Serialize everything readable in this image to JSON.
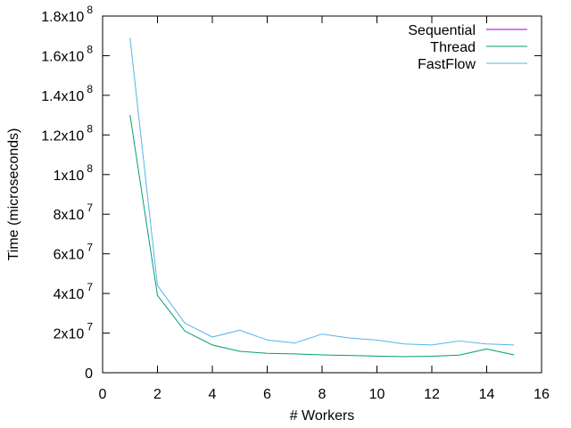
{
  "chart_data": {
    "type": "line",
    "title": "",
    "xlabel": "# Workers",
    "ylabel": "Time (microseconds)",
    "xlim": [
      0,
      16
    ],
    "ylim": [
      0,
      180000000
    ],
    "grid": false,
    "legend_position": "top-right",
    "x_ticks": [
      {
        "value": 0,
        "label": "0"
      },
      {
        "value": 2,
        "label": "2"
      },
      {
        "value": 4,
        "label": "4"
      },
      {
        "value": 6,
        "label": "6"
      },
      {
        "value": 8,
        "label": "8"
      },
      {
        "value": 10,
        "label": "10"
      },
      {
        "value": 12,
        "label": "12"
      },
      {
        "value": 14,
        "label": "14"
      },
      {
        "value": 16,
        "label": "16"
      }
    ],
    "y_ticks": [
      {
        "value": 0,
        "mantissa": "0",
        "exponent": ""
      },
      {
        "value": 20000000,
        "mantissa": "2x10",
        "exponent": "7"
      },
      {
        "value": 40000000,
        "mantissa": "4x10",
        "exponent": "7"
      },
      {
        "value": 60000000,
        "mantissa": "6x10",
        "exponent": "7"
      },
      {
        "value": 80000000,
        "mantissa": "8x10",
        "exponent": "7"
      },
      {
        "value": 100000000,
        "mantissa": "1x10",
        "exponent": "8"
      },
      {
        "value": 120000000,
        "mantissa": "1.2x10",
        "exponent": "8"
      },
      {
        "value": 140000000,
        "mantissa": "1.4x10",
        "exponent": "8"
      },
      {
        "value": 160000000,
        "mantissa": "1.6x10",
        "exponent": "8"
      },
      {
        "value": 180000000,
        "mantissa": "1.8x10",
        "exponent": "8"
      }
    ],
    "series": [
      {
        "name": "Sequential",
        "color": "#9400d3",
        "x": [],
        "y": []
      },
      {
        "name": "Thread",
        "color": "#009e73",
        "x": [
          1,
          2,
          3,
          4,
          5,
          6,
          7,
          8,
          9,
          10,
          11,
          12,
          13,
          14,
          15
        ],
        "y": [
          130000000,
          39000000,
          21000000,
          14000000,
          10800000,
          9800000,
          9500000,
          9000000,
          8700000,
          8400000,
          8100000,
          8300000,
          8900000,
          12000000,
          9000000
        ]
      },
      {
        "name": "FastFlow",
        "color": "#56b4e9",
        "x": [
          1,
          2,
          3,
          4,
          5,
          6,
          7,
          8,
          9,
          10,
          11,
          12,
          13,
          14,
          15
        ],
        "y": [
          169000000,
          44000000,
          25000000,
          18000000,
          21500000,
          16500000,
          15000000,
          19500000,
          17500000,
          16500000,
          14500000,
          14000000,
          16000000,
          14500000,
          14000000
        ]
      }
    ]
  }
}
